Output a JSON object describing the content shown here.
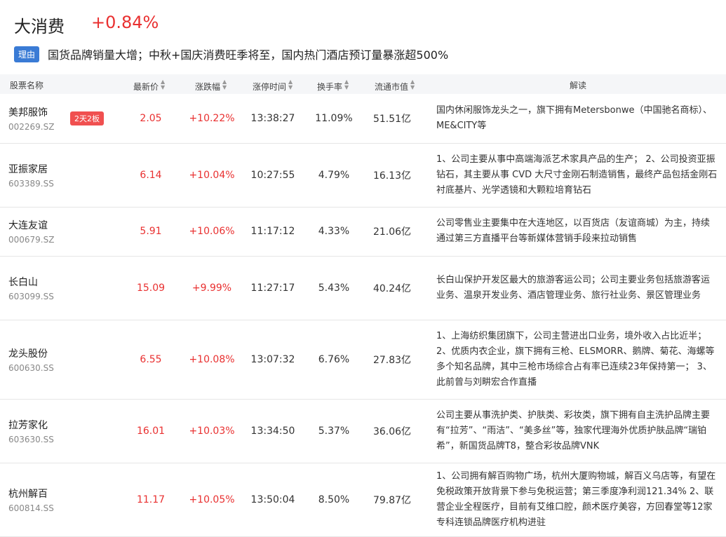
{
  "header": {
    "title": "大消费",
    "change": "+0.84%",
    "reason_label": "理由",
    "reason": "国货品牌销量大增；中秋+国庆消费旺季将至，国内热门酒店预订量暴涨超500%"
  },
  "columns": {
    "name": "股票名称",
    "price": "最新价",
    "pct": "涨跌幅",
    "time": "涨停时间",
    "turnover": "换手率",
    "mcap": "流通市值",
    "desc": "解读"
  },
  "rows": [
    {
      "name": "美邦服饰",
      "code": "002269.SZ",
      "badge": "2天2板",
      "price": "2.05",
      "pct": "+10.22%",
      "time": "13:38:27",
      "turnover": "11.09%",
      "mcap": "51.51亿",
      "desc": "国内休闲服饰龙头之一，旗下拥有Metersbonwe（中国驰名商标）、ME&CITY等"
    },
    {
      "name": "亚振家居",
      "code": "603389.SS",
      "price": "6.14",
      "pct": "+10.04%",
      "time": "10:27:55",
      "turnover": "4.79%",
      "mcap": "16.13亿",
      "desc": "1、公司主要从事中高端海派艺术家具产品的生产； 2、公司投资亚振钻石，其主要从事 CVD 大尺寸金刚石制造销售，最终产品包括金刚石衬底基片、光学透镜和大颗粒培育钻石"
    },
    {
      "name": "大连友谊",
      "code": "000679.SZ",
      "price": "5.91",
      "pct": "+10.06%",
      "time": "11:17:12",
      "turnover": "4.33%",
      "mcap": "21.06亿",
      "desc": "公司零售业主要集中在大连地区，以百货店（友谊商城）为主，持续通过第三方直播平台等新媒体营销手段来拉动销售"
    },
    {
      "name": "长白山",
      "code": "603099.SS",
      "price": "15.09",
      "pct": "+9.99%",
      "time": "11:27:17",
      "turnover": "5.43%",
      "mcap": "40.24亿",
      "desc": "长白山保护开发区最大的旅游客运公司；公司主要业务包括旅游客运业务、温泉开发业务、酒店管理业务、旅行社业务、景区管理业务"
    },
    {
      "name": "龙头股份",
      "code": "600630.SS",
      "price": "6.55",
      "pct": "+10.08%",
      "time": "13:07:32",
      "turnover": "6.76%",
      "mcap": "27.83亿",
      "desc": "1、上海纺织集团旗下，公司主营进出口业务，境外收入占比近半； 2、优质内衣企业，旗下拥有三枪、ELSMORR、鹅牌、菊花、海螺等多个知名品牌，其中三枪市场综合占有率已连续23年保持第一； 3、此前曾与刘畊宏合作直播"
    },
    {
      "name": "拉芳家化",
      "code": "603630.SS",
      "price": "16.01",
      "pct": "+10.03%",
      "time": "13:34:50",
      "turnover": "5.37%",
      "mcap": "36.06亿",
      "desc": "公司主要从事洗护类、护肤类、彩妆类，旗下拥有自主洗护品牌主要有“拉芳”、“雨洁”、“美多丝”等，独家代理海外优质护肤品牌“瑞铂希”，新国货品牌T8，整合彩妆品牌VNK"
    },
    {
      "name": "杭州解百",
      "code": "600814.SS",
      "price": "11.17",
      "pct": "+10.05%",
      "time": "13:50:04",
      "turnover": "8.50%",
      "mcap": "79.87亿",
      "desc": "1、公司拥有解百购物广场，杭州大厦购物城，解百义乌店等，有望在免税政策开放背景下参与免税运营；第三季度净利润121.34% 2、联营企业全程医疗，目前有艾维口腔，颜术医疗美容，方回春堂等12家专科连锁品牌医疗机构进驻"
    }
  ]
}
